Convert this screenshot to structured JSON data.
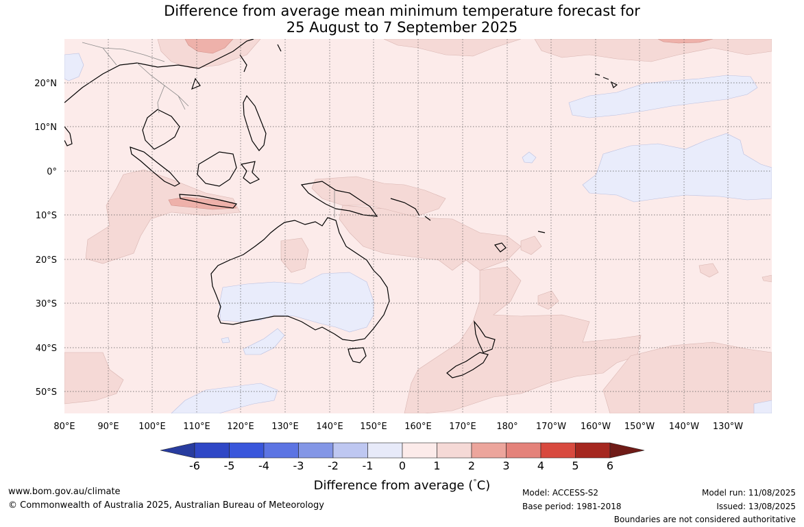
{
  "title": {
    "line1": "Difference from average mean minimum temperature forecast for",
    "line2": "25 August to 7 September 2025"
  },
  "map": {
    "lon_labels": [
      "80°E",
      "90°E",
      "100°E",
      "110°E",
      "120°E",
      "130°E",
      "140°E",
      "150°E",
      "160°E",
      "170°E",
      "180°",
      "170°W",
      "160°W",
      "150°W",
      "140°W",
      "130°W"
    ],
    "lat_labels": [
      "20°N",
      "10°N",
      "0°",
      "10°S",
      "20°S",
      "30°S",
      "40°S",
      "50°S"
    ],
    "colors": {
      "ocean_base": "#fcebea",
      "warm_1_2": "#f5d9d6",
      "warm_2_3": "#eeb1aa",
      "cool_0_m1": "#e9ecfb",
      "grid": "#555555",
      "coast": "#000000",
      "border": "#888888"
    }
  },
  "colorbar": {
    "ticks": [
      "-6",
      "-5",
      "-4",
      "-3",
      "-2",
      "-1",
      "0",
      "1",
      "2",
      "3",
      "4",
      "5",
      "6"
    ],
    "colors": [
      "#283c9f",
      "#2f47c6",
      "#3956db",
      "#5c74e3",
      "#8396e6",
      "#bec7f1",
      "#e7eaf9",
      "#fcebea",
      "#f5d9d6",
      "#eca59c",
      "#e4827a",
      "#d84a3f",
      "#a5271f",
      "#6f1b17"
    ],
    "title": "Difference from average (",
    "unit_symbol": "°",
    "unit_letter": "C",
    "unit_close": ")"
  },
  "footer": {
    "website": "www.bom.gov.au/climate",
    "copyright": "© Commonwealth of Australia 2025, Australian Bureau of Meteorology",
    "model": "Model: ACCESS-S2",
    "base_period": "Base period: 1981-2018",
    "model_run": "Model run: 11/08/2025",
    "issued": "Issued: 13/08/2025",
    "disclaimer": "Boundaries are not considered authoritative"
  }
}
